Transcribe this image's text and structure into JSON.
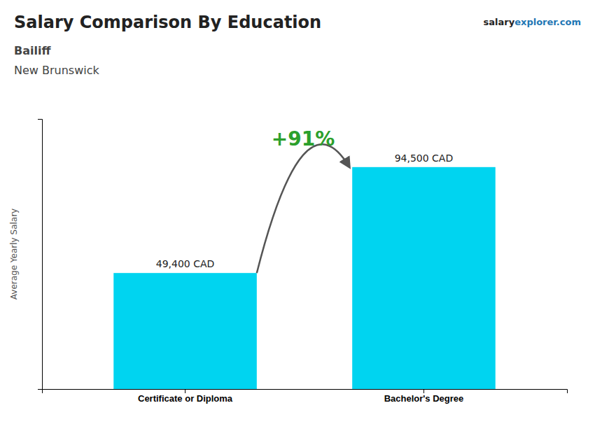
{
  "chart_data": {
    "type": "bar",
    "title": "Salary Comparison By Education",
    "subtitle": [
      "Bailiff",
      "New Brunswick"
    ],
    "annotations": [
      "+91%",
      "salary",
      "explorer.com"
    ],
    "ylabel": "Average Yearly Salary",
    "categories": [
      "Certificate or Diploma",
      "Bachelor's Degree"
    ],
    "values": [
      49400,
      94500
    ],
    "value_labels": [
      "49,400 CAD",
      "94,500 CAD"
    ],
    "data_labels": true,
    "color": "#00D4F0",
    "ylim": [
      0,
      115000
    ],
    "yticks": [],
    "tick_labels": "x",
    "grid": false
  }
}
